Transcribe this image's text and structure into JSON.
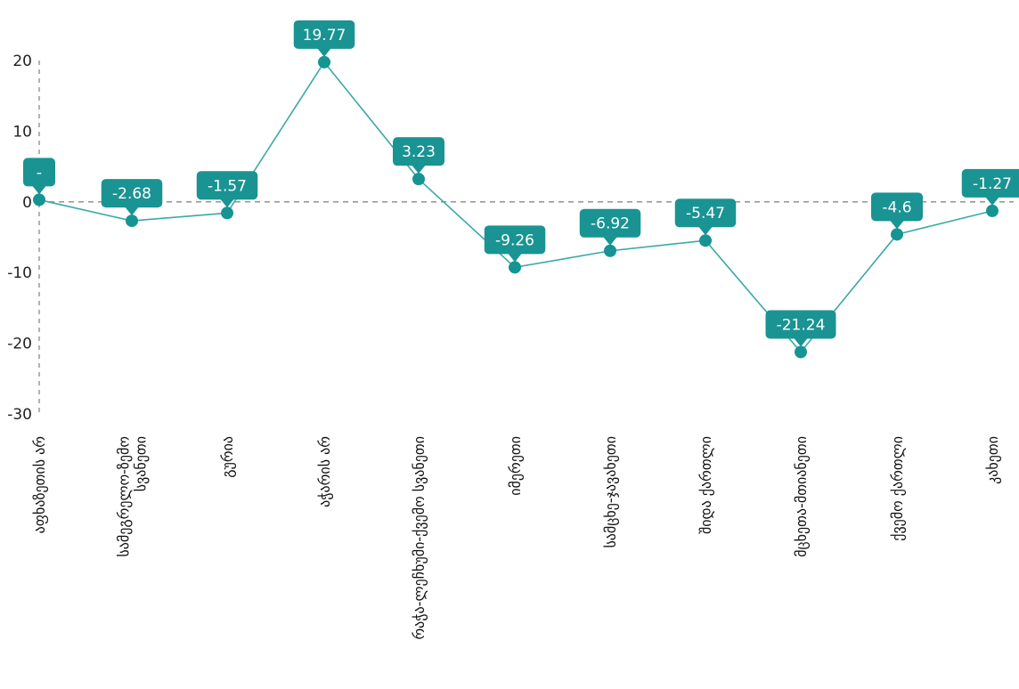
{
  "chart_data": {
    "type": "line",
    "title": "",
    "xlabel": "",
    "ylabel": "",
    "ylim": [
      -30,
      20
    ],
    "yticks": [
      "20",
      "10",
      "0",
      "-10",
      "-20",
      "-30"
    ],
    "categories": [
      "აფხაზეთის არ",
      "სამეგრელო-ზემო სვანეთი",
      "გურია",
      "აჭარის არ",
      "რაჭა-ლეჩხუმი-ქვემო სვანეთი",
      "იმერეთი",
      "სამცხე-ჯავახეთი",
      "შიდა ქართლი",
      "მცხეთა-მთიანეთი",
      "ქვემო ქართლი",
      "კახეთი"
    ],
    "category_lines": [
      [
        "აფხაზეთის არ"
      ],
      [
        "სამეგრელო-ზემო",
        "სვანეთი"
      ],
      [
        "გურია"
      ],
      [
        "აჭარის არ"
      ],
      [
        "რაჭა-ლეჩხუმი-ქვემო სვანეთი"
      ],
      [
        "იმერეთი"
      ],
      [
        "სამცხე-ჯავახეთი"
      ],
      [
        "შიდა ქართლი"
      ],
      [
        "მცხეთა-მთიანეთი"
      ],
      [
        "ქვემო ქართლი"
      ],
      [
        "კახეთი"
      ]
    ],
    "values": [
      0.3,
      -2.68,
      -1.57,
      19.77,
      3.23,
      -9.26,
      -6.92,
      -5.47,
      -21.24,
      -4.6,
      -1.27
    ],
    "data_labels": [
      "-",
      "-2.68",
      "-1.57",
      "19.77",
      "3.23",
      "-9.26",
      "-6.92",
      "-5.47",
      "-21.24",
      "-4.6",
      "-1.27"
    ],
    "zero_line": true,
    "grid": false,
    "colors": {
      "line": "#3aa8a8",
      "marker": "#169494",
      "label_bg": "#1a9393",
      "label_text": "#ffffff",
      "axis": "#888888"
    }
  }
}
